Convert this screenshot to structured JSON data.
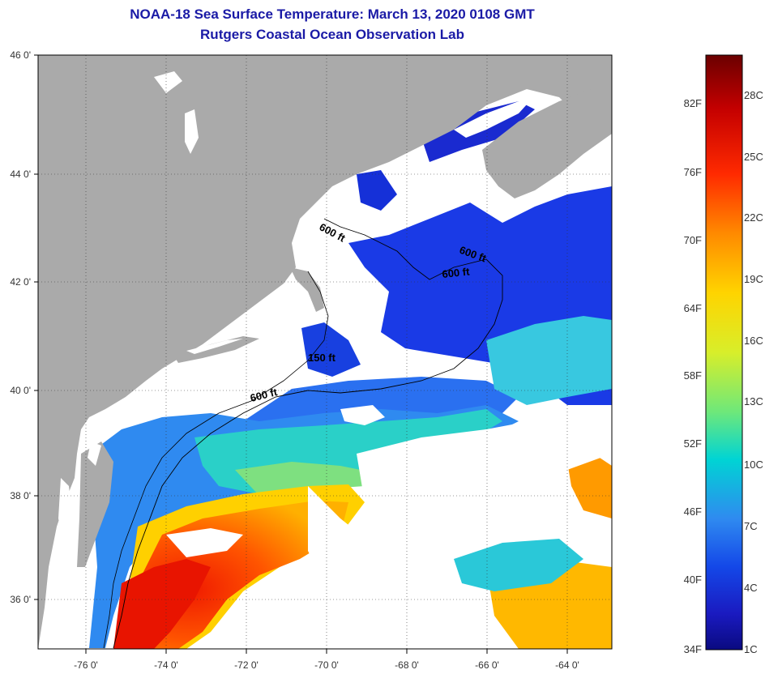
{
  "header": {
    "title": "NOAA-18 Sea Surface Temperature:  March 13, 2020 0108 GMT",
    "subtitle": "Rutgers Coastal Ocean Observation Lab"
  },
  "map": {
    "lat_labels": [
      "46 0'",
      "44 0'",
      "42 0'",
      "40 0'",
      "38 0'",
      "36 0'"
    ],
    "lon_labels": [
      "-76 0'",
      "-74 0'",
      "-72 0'",
      "-70 0'",
      "-68 0'",
      "-66 0'",
      "-64 0'"
    ],
    "depth_labels": [
      "600 ft",
      "600 ft",
      "600 ft",
      "150 ft",
      "600 ft"
    ],
    "colors": {
      "land": "#aaaaaa",
      "cloud": "#ffffff"
    }
  },
  "colorbar": {
    "f_labels": [
      "82F",
      "76F",
      "70F",
      "64F",
      "58F",
      "52F",
      "46F",
      "40F",
      "34F"
    ],
    "c_labels": [
      "28C",
      "25C",
      "22C",
      "19C",
      "16C",
      "13C",
      "10C",
      "7C",
      "4C",
      "1C"
    ],
    "gradient": [
      "#6b0000",
      "#c40000",
      "#ff2a00",
      "#ff8a00",
      "#ffd400",
      "#d8ee2a",
      "#6ee87a",
      "#00d4d4",
      "#2f8af0",
      "#1448e8",
      "#1a1ac0",
      "#0a0a80"
    ]
  }
}
